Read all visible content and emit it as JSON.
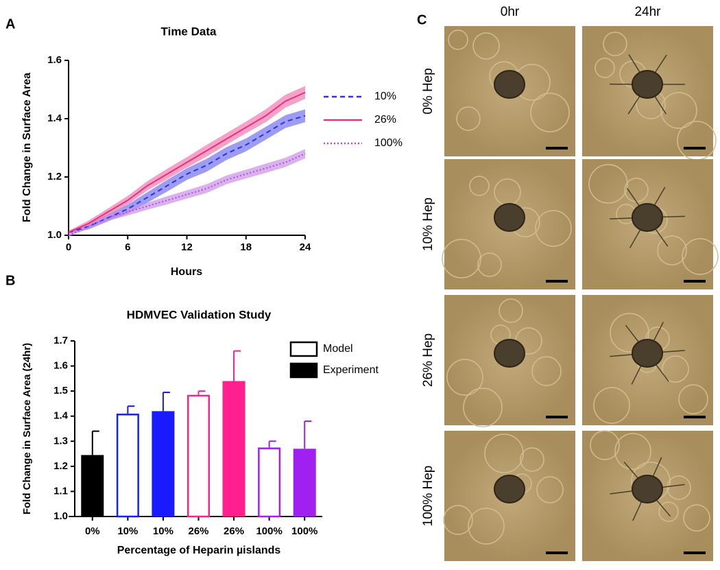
{
  "panels": [
    "A",
    "B",
    "C"
  ],
  "chart_data": [
    {
      "type": "line",
      "title": "Time Data",
      "x_label": "Hours",
      "y_label": "Fold Change in Surface Area",
      "x": [
        0,
        2,
        4,
        6,
        8,
        10,
        12,
        14,
        16,
        18,
        20,
        22,
        24
      ],
      "series": [
        {
          "name": "10%",
          "color": "#2f2fe6",
          "band_color": "#7272ee",
          "style": "dashed",
          "values": [
            1.01,
            1.03,
            1.06,
            1.09,
            1.13,
            1.17,
            1.21,
            1.24,
            1.28,
            1.31,
            1.35,
            1.39,
            1.41
          ],
          "errors": [
            0.005,
            0.01,
            0.012,
            0.015,
            0.018,
            0.02,
            0.02,
            0.022,
            0.022,
            0.022,
            0.022,
            0.022,
            0.022
          ]
        },
        {
          "name": "26%",
          "color": "#e8307f",
          "band_color": "#f07bb0",
          "style": "solid",
          "values": [
            1.01,
            1.04,
            1.08,
            1.12,
            1.17,
            1.21,
            1.25,
            1.29,
            1.33,
            1.37,
            1.41,
            1.46,
            1.49
          ],
          "errors": [
            0.005,
            0.01,
            0.012,
            0.015,
            0.016,
            0.018,
            0.018,
            0.02,
            0.02,
            0.02,
            0.022,
            0.022,
            0.022
          ]
        },
        {
          "name": "100%",
          "color": "#b04cd8",
          "band_color": "#c890e6",
          "style": "dotted",
          "values": [
            1.0,
            1.03,
            1.06,
            1.08,
            1.1,
            1.12,
            1.14,
            1.16,
            1.19,
            1.21,
            1.23,
            1.25,
            1.28
          ],
          "errors": [
            0.004,
            0.008,
            0.01,
            0.012,
            0.012,
            0.014,
            0.014,
            0.015,
            0.015,
            0.015,
            0.016,
            0.016,
            0.016
          ]
        }
      ],
      "xlim": [
        0,
        24
      ],
      "ylim": [
        1.0,
        1.6
      ],
      "xticks": [
        0,
        6,
        12,
        18,
        24
      ],
      "yticks": [
        {
          "value": 1,
          "label": "1.0"
        },
        1.2,
        1.4,
        1.6
      ],
      "legend": "right"
    },
    {
      "type": "bar",
      "title": "HDMVEC Validation Study",
      "x_label": "Percentage of Heparin µislands",
      "y_label": "Fold Change in Surface Area  (24hr)",
      "categories": [
        "0%",
        "10%",
        "10%",
        "26%",
        "26%",
        "100%",
        "100%"
      ],
      "colors": [
        "#000000",
        "#1a1aff",
        "#1a1aff",
        "#ff1f8f",
        "#ff1f8f",
        "#a020f0",
        "#a020f0"
      ],
      "series": [
        {
          "name": "Model",
          "fill": false,
          "values": [
            null,
            1.41,
            null,
            1.485,
            null,
            1.275,
            null
          ],
          "errors": [
            null,
            0.03,
            null,
            0.015,
            null,
            0.025,
            null
          ]
        },
        {
          "name": "Experiment",
          "fill": true,
          "values": [
            1.245,
            null,
            1.42,
            null,
            1.54,
            null,
            1.27
          ],
          "errors": [
            0.095,
            null,
            0.075,
            null,
            0.12,
            null,
            0.11
          ]
        }
      ],
      "ylim": [
        1.0,
        1.7
      ],
      "yticks": [
        {
          "value": 1,
          "label": "1.0"
        },
        1.1,
        1.2,
        1.3,
        1.4,
        1.5,
        1.6,
        1.7
      ],
      "legend": "upper right"
    }
  ],
  "micrographs": {
    "columns": [
      "0hr",
      "24hr"
    ],
    "rows": [
      "0% Hep",
      "10% Hep",
      "26% Hep",
      "100% Hep"
    ]
  }
}
